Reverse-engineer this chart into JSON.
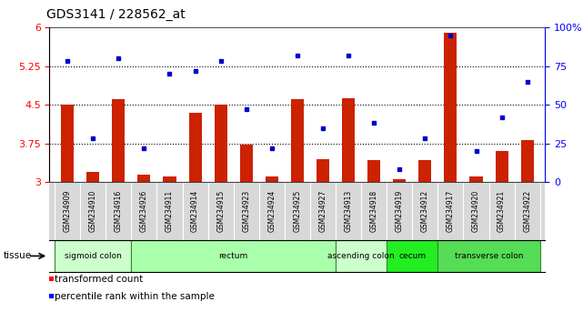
{
  "title": "GDS3141 / 228562_at",
  "samples": [
    "GSM234909",
    "GSM234910",
    "GSM234916",
    "GSM234926",
    "GSM234911",
    "GSM234914",
    "GSM234915",
    "GSM234923",
    "GSM234924",
    "GSM234925",
    "GSM234927",
    "GSM234913",
    "GSM234918",
    "GSM234919",
    "GSM234912",
    "GSM234917",
    "GSM234920",
    "GSM234921",
    "GSM234922"
  ],
  "bar_values": [
    4.5,
    3.2,
    4.6,
    3.15,
    3.1,
    4.35,
    4.5,
    3.72,
    3.1,
    4.6,
    3.45,
    4.62,
    3.42,
    3.05,
    3.42,
    5.9,
    3.1,
    3.6,
    3.82
  ],
  "dot_values": [
    78,
    28,
    80,
    22,
    70,
    72,
    78,
    47,
    22,
    82,
    35,
    82,
    38,
    8,
    28,
    95,
    20,
    42,
    65
  ],
  "tissues": [
    {
      "label": "sigmoid colon",
      "start": 0,
      "end": 3,
      "color": "#ccffcc"
    },
    {
      "label": "rectum",
      "start": 3,
      "end": 11,
      "color": "#aaffaa"
    },
    {
      "label": "ascending colon",
      "start": 11,
      "end": 13,
      "color": "#ccffcc"
    },
    {
      "label": "cecum",
      "start": 13,
      "end": 15,
      "color": "#22ee22"
    },
    {
      "label": "transverse colon",
      "start": 15,
      "end": 19,
      "color": "#55dd55"
    }
  ],
  "ylim_left": [
    3.0,
    6.0
  ],
  "ylim_right": [
    0,
    100
  ],
  "yticks_left": [
    3.0,
    3.75,
    4.5,
    5.25,
    6.0
  ],
  "yticks_right": [
    0,
    25,
    50,
    75,
    100
  ],
  "hlines": [
    3.75,
    4.5,
    5.25
  ],
  "bar_color": "#cc2200",
  "dot_color": "#0000cc",
  "bar_width": 0.5,
  "sample_box_color": "#d8d8d8",
  "tissue_edge_color": "#338833",
  "plot_bg": "#ffffff"
}
